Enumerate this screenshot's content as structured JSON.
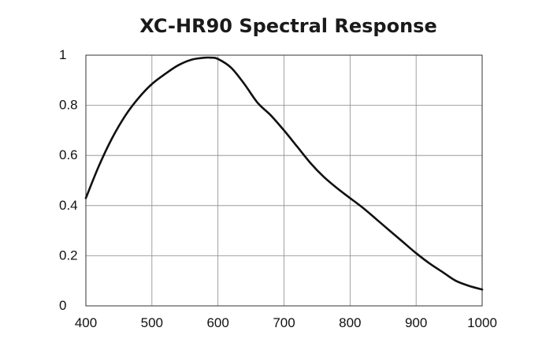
{
  "chart_data": {
    "type": "line",
    "title": "XC-HR90 Spectral Response",
    "xlabel": "",
    "ylabel": "",
    "xlim": [
      400,
      1000
    ],
    "ylim": [
      0,
      1
    ],
    "x_ticks": [
      "400",
      "500",
      "600",
      "700",
      "800",
      "900",
      "1000"
    ],
    "y_ticks": [
      "0",
      "0.2",
      "0.4",
      "0.6",
      "0.8",
      "1"
    ],
    "grid": true,
    "legend": "none",
    "series": [
      {
        "color": "#111111",
        "x": [
          400,
          420,
          440,
          460,
          480,
          500,
          520,
          540,
          560,
          580,
          590,
          600,
          620,
          640,
          660,
          680,
          700,
          720,
          740,
          760,
          780,
          800,
          820,
          840,
          860,
          880,
          900,
          920,
          940,
          960,
          980,
          1000
        ],
        "y": [
          0.43,
          0.56,
          0.67,
          0.76,
          0.83,
          0.885,
          0.925,
          0.96,
          0.982,
          0.99,
          0.99,
          0.985,
          0.95,
          0.885,
          0.81,
          0.76,
          0.7,
          0.635,
          0.57,
          0.515,
          0.47,
          0.43,
          0.39,
          0.345,
          0.3,
          0.255,
          0.21,
          0.17,
          0.135,
          0.1,
          0.08,
          0.065
        ]
      }
    ]
  }
}
